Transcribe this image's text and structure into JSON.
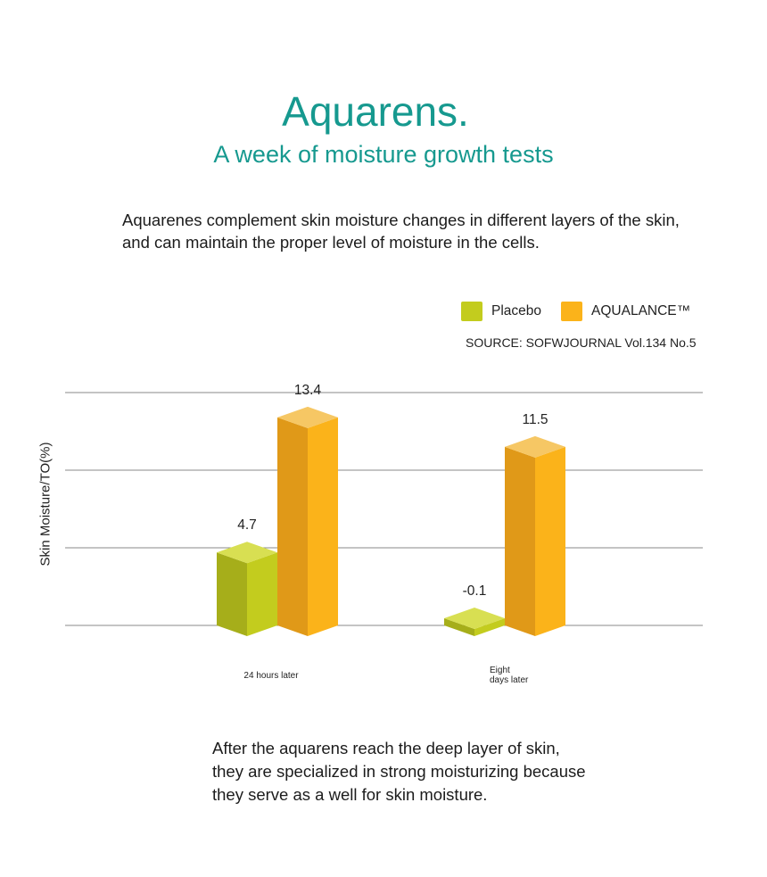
{
  "header": {
    "title": "Aquarens.",
    "subtitle": "A week of moisture growth tests"
  },
  "intro_text": "Aquarenes complement skin moisture changes in different layers of the skin, and can maintain the proper level of moisture in the cells.",
  "legend": {
    "placebo": "Placebo",
    "aqualance": "AQUALANCE™"
  },
  "source": "SOURCE: SOFWJOURNAL Vol.134 No.5",
  "outro_text": "After the aquarens reach the deep layer of skin, they are specialized in strong moisturizing because they serve as a well for skin moisture.",
  "colors": {
    "placebo_front": "#c3cc1e",
    "placebo_side": "#a6ae1a",
    "placebo_top": "#d8df52",
    "aqualance_front": "#fbb31a",
    "aqualance_side": "#e09918",
    "aqualance_top": "#f6c764",
    "grid": "#8a8a8a"
  },
  "chart_data": {
    "type": "bar",
    "ylabel": "Skin Moisture/TO(%)",
    "xlabel": "",
    "categories": [
      "24 hours later",
      "Eight days later"
    ],
    "series": [
      {
        "name": "Placebo",
        "values": [
          4.7,
          -0.1
        ],
        "labels": [
          "4.7",
          "-0.1"
        ]
      },
      {
        "name": "AQUALANCE™",
        "values": [
          13.4,
          11.5
        ],
        "labels": [
          "13.4",
          "11.5"
        ]
      }
    ],
    "ylim": [
      0,
      15
    ],
    "gridlines": [
      0,
      5,
      10,
      15
    ],
    "grid": true,
    "legend_position": "top-right"
  }
}
